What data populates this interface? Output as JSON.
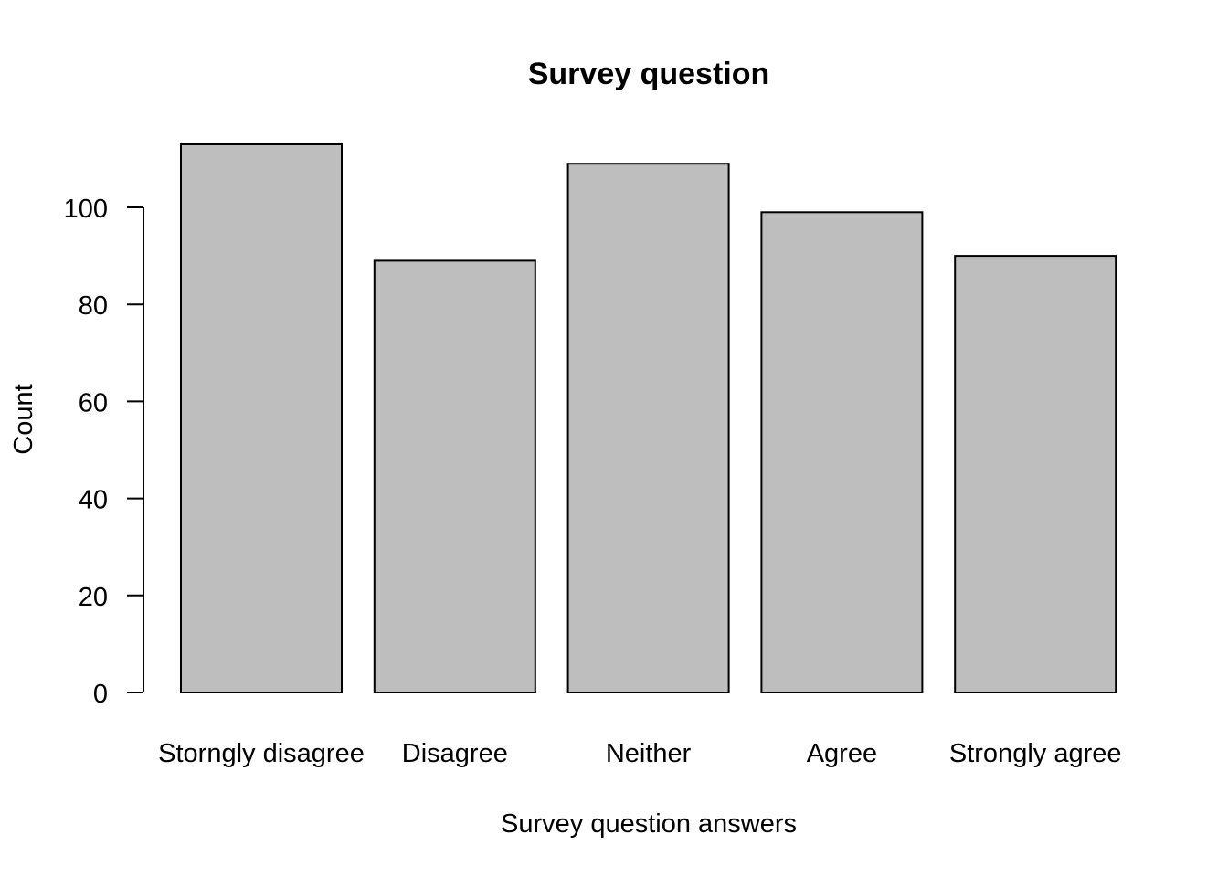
{
  "chart_data": {
    "type": "bar",
    "title": "Survey question",
    "xlabel": "Survey question answers",
    "ylabel": "Count",
    "categories": [
      "Storngly disagree",
      "Disagree",
      "Neither",
      "Agree",
      "Strongly agree"
    ],
    "values": [
      113,
      89,
      109,
      99,
      90
    ],
    "yticks": [
      0,
      20,
      40,
      60,
      80,
      100
    ],
    "ylim": [
      0,
      113
    ],
    "bar_color": "#bebebe",
    "bar_border_color": "#000000",
    "grid": false,
    "legend": "none"
  }
}
